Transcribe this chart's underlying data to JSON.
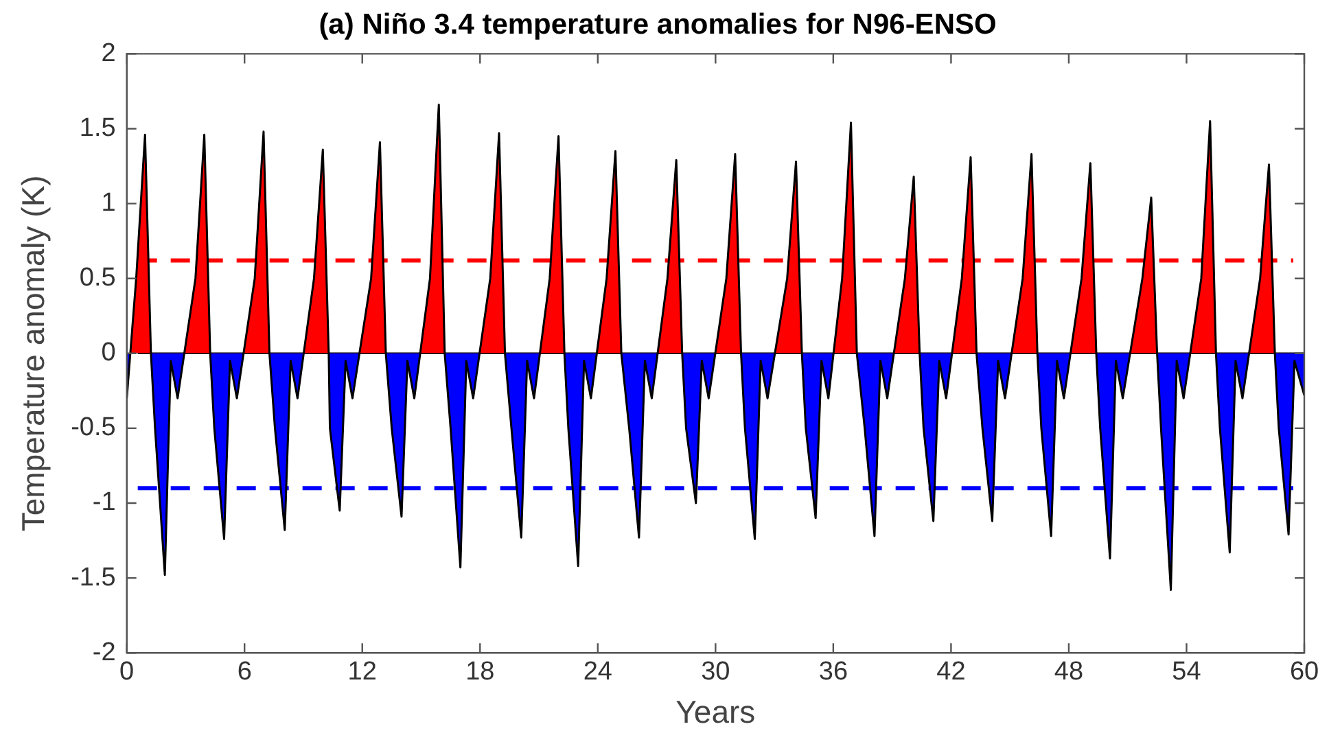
{
  "chart_data": {
    "type": "area",
    "title": "(a) Niño 3.4 temperature anomalies for N96-ENSO",
    "xlabel": "Years",
    "ylabel": "Temperature anomaly (K)",
    "xlim": [
      0,
      60
    ],
    "xticks": [
      0,
      6,
      12,
      18,
      24,
      30,
      36,
      42,
      48,
      54,
      60
    ],
    "ylim": [
      -2,
      2
    ],
    "yticks": [
      -2,
      -1.5,
      -1,
      -0.5,
      0,
      0.5,
      1,
      1.5,
      2
    ],
    "grid": false,
    "legend": false,
    "marker": "none",
    "line_style": "solid",
    "ref_lines": [
      {
        "axis": "y",
        "value": 0,
        "color": "#000000",
        "line_style": "solid"
      },
      {
        "axis": "y",
        "value": 0.62,
        "color": "#ff0000",
        "line_style": "dashed"
      },
      {
        "axis": "y",
        "value": -0.9,
        "color": "#0000ff",
        "line_style": "dashed"
      }
    ],
    "series": [
      {
        "color": "#000000",
        "x": [
          0,
          0.48,
          0.93,
          1.23,
          1.44,
          1.94,
          2.24,
          2.59,
          3.5,
          3.95,
          4.25,
          4.46,
          4.96,
          5.26,
          5.61,
          6.52,
          6.97,
          7.27,
          7.55,
          8.05,
          8.35,
          8.7,
          9.54,
          9.99,
          10.29,
          10.35,
          10.85,
          11.15,
          11.5,
          12.45,
          12.9,
          13.2,
          13.5,
          14.0,
          14.3,
          14.65,
          15.45,
          15.9,
          16.2,
          16.5,
          17.0,
          17.3,
          17.65,
          18.52,
          18.97,
          19.27,
          19.6,
          20.1,
          20.4,
          20.75,
          21.55,
          22.0,
          22.3,
          22.5,
          23.0,
          23.3,
          23.65,
          24.45,
          24.9,
          25.2,
          25.6,
          26.1,
          26.4,
          26.75,
          27.55,
          28.0,
          28.3,
          28.5,
          29.0,
          29.3,
          29.65,
          30.55,
          31.0,
          31.3,
          31.5,
          32.0,
          32.3,
          32.65,
          33.65,
          34.1,
          34.4,
          34.6,
          35.1,
          35.4,
          35.75,
          36.45,
          36.9,
          37.2,
          37.6,
          38.1,
          38.4,
          38.75,
          39.65,
          40.1,
          40.4,
          40.6,
          41.1,
          41.4,
          41.75,
          42.55,
          43.0,
          43.3,
          43.6,
          44.1,
          44.4,
          44.75,
          45.65,
          46.1,
          46.4,
          46.6,
          47.1,
          47.4,
          47.75,
          48.65,
          49.1,
          49.4,
          49.6,
          50.1,
          50.4,
          50.75,
          51.75,
          52.2,
          52.5,
          52.7,
          53.2,
          53.5,
          53.85,
          54.75,
          55.2,
          55.5,
          55.7,
          56.2,
          56.5,
          56.85,
          57.75,
          58.2,
          58.5,
          58.7,
          59.2,
          59.5,
          60
        ],
        "values": [
          -0.3,
          0.5,
          1.46,
          0,
          -0.5,
          -1.48,
          -0.05,
          -0.3,
          0.5,
          1.46,
          0,
          -0.5,
          -1.24,
          -0.05,
          -0.3,
          0.5,
          1.48,
          0,
          -0.5,
          -1.18,
          -0.05,
          -0.3,
          0.5,
          1.36,
          0,
          -0.5,
          -1.05,
          -0.05,
          -0.3,
          0.5,
          1.41,
          0,
          -0.5,
          -1.09,
          -0.05,
          -0.3,
          0.5,
          1.66,
          0,
          -0.5,
          -1.43,
          -0.05,
          -0.3,
          0.5,
          1.47,
          0,
          -0.5,
          -1.23,
          -0.05,
          -0.3,
          0.5,
          1.45,
          0,
          -0.5,
          -1.42,
          -0.05,
          -0.3,
          0.5,
          1.35,
          0,
          -0.5,
          -1.23,
          -0.05,
          -0.3,
          0.5,
          1.29,
          0,
          -0.5,
          -1.0,
          -0.05,
          -0.3,
          0.5,
          1.33,
          0,
          -0.5,
          -1.24,
          -0.05,
          -0.3,
          0.5,
          1.28,
          0,
          -0.5,
          -1.1,
          -0.05,
          -0.3,
          0.5,
          1.54,
          0,
          -0.5,
          -1.22,
          -0.05,
          -0.3,
          0.5,
          1.18,
          0,
          -0.5,
          -1.12,
          -0.05,
          -0.3,
          0.5,
          1.31,
          0,
          -0.5,
          -1.12,
          -0.05,
          -0.3,
          0.5,
          1.33,
          0,
          -0.5,
          -1.22,
          -0.05,
          -0.3,
          0.5,
          1.27,
          0,
          -0.5,
          -1.37,
          -0.05,
          -0.3,
          0.5,
          1.04,
          0,
          -0.5,
          -1.58,
          -0.05,
          -0.3,
          0.5,
          1.55,
          0,
          -0.5,
          -1.33,
          -0.05,
          -0.3,
          0.5,
          1.26,
          0,
          -0.5,
          -1.21,
          -0.05,
          -0.28
        ]
      }
    ]
  }
}
